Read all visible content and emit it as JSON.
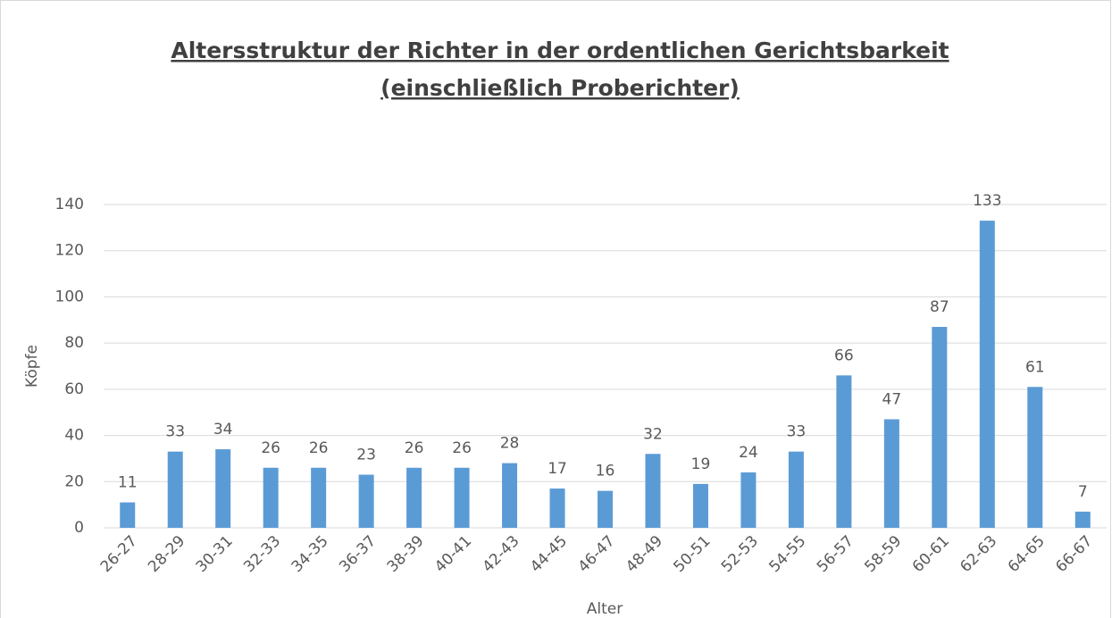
{
  "chart_data": {
    "type": "bar",
    "title": [
      "Altersstruktur der Richter in der ordentlichen Gerichtsbarkeit",
      "(einschließlich Proberichter)"
    ],
    "x_label": "Alter",
    "y_label": "Köpfe",
    "categories": [
      "26-27",
      "28-29",
      "30-31",
      "32-33",
      "34-35",
      "36-37",
      "38-39",
      "40-41",
      "42-43",
      "44-45",
      "46-47",
      "48-49",
      "50-51",
      "52-53",
      "54-55",
      "56-57",
      "58-59",
      "60-61",
      "62-63",
      "64-65",
      "66-67"
    ],
    "values": [
      11,
      33,
      34,
      26,
      26,
      23,
      26,
      26,
      28,
      17,
      16,
      32,
      19,
      24,
      33,
      66,
      47,
      87,
      133,
      61,
      7
    ],
    "color": "#5b9bd5",
    "ylim": [
      0,
      140
    ],
    "yticks": [
      0,
      20,
      40,
      60,
      80,
      100,
      120,
      140
    ],
    "grid": true
  }
}
